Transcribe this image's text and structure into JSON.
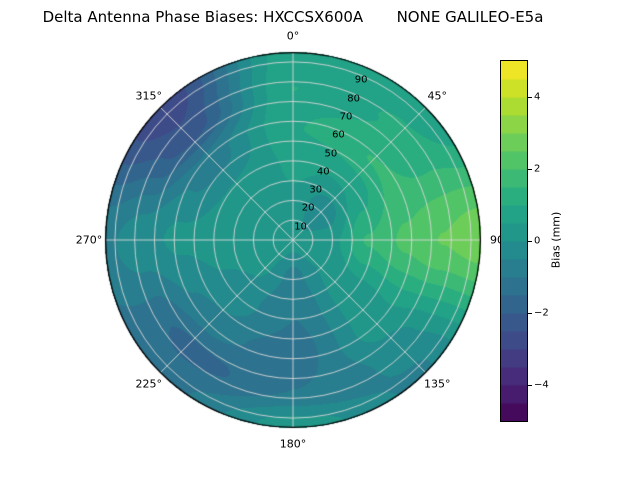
{
  "chart_data": {
    "type": "heatmap",
    "projection": "polar",
    "title": "Delta Antenna Phase Biases: HXCCSX600A       NONE GALILEO-E5a",
    "zero_location": "N",
    "direction": "clockwise",
    "angular_ticks_deg": [
      0,
      45,
      90,
      135,
      180,
      225,
      270,
      315
    ],
    "angular_tick_labels": [
      "0°",
      "45°",
      "90",
      "135°",
      "180°",
      "225°",
      "270°",
      "315°"
    ],
    "radial_ticks": [
      10,
      20,
      30,
      40,
      50,
      60,
      70,
      80,
      90
    ],
    "radial_tick_labels": [
      "10",
      "20",
      "30",
      "40",
      "50",
      "60",
      "70",
      "80",
      "90"
    ],
    "radial_max": 95,
    "radial_label_angle_deg": 22.5,
    "levels_step": 0.5,
    "grid_line_color": "#d8d8d8",
    "colorbar": {
      "label": "Bias (mm)",
      "ticks": [
        4,
        2,
        0,
        -2,
        -4
      ],
      "tick_labels": [
        "4",
        "2",
        "0",
        "−2",
        "−4"
      ],
      "vmin": -5,
      "vmax": 5,
      "colormap": "viridis",
      "stops": [
        "#440154",
        "#482475",
        "#414487",
        "#355f8d",
        "#2a788e",
        "#21918c",
        "#22a884",
        "#44bf70",
        "#7ad151",
        "#bddf26",
        "#fde725"
      ]
    },
    "grid": {
      "azimuth_deg": [
        0,
        45,
        90,
        135,
        180,
        225,
        270,
        315
      ],
      "radius_frac": [
        0,
        0.2,
        0.4,
        0.6,
        0.8,
        1.0
      ],
      "bias_mm": [
        [
          0.2,
          0.2,
          0.2,
          0.2,
          0.2,
          0.2,
          0.2,
          0.2
        ],
        [
          0.4,
          -0.4,
          0.3,
          0.0,
          -0.7,
          0.1,
          0.3,
          0.3
        ],
        [
          0.6,
          0.5,
          1.5,
          0.2,
          -1.0,
          -0.2,
          0.2,
          0.1
        ],
        [
          0.9,
          1.5,
          2.1,
          0.2,
          -1.3,
          -0.7,
          0.1,
          -0.8
        ],
        [
          1.0,
          1.0,
          2.4,
          -0.3,
          -1.0,
          -1.7,
          -0.3,
          -2.4
        ],
        [
          0.7,
          0.5,
          2.8,
          -0.6,
          0.2,
          -1.3,
          -0.6,
          -2.9
        ]
      ]
    }
  }
}
